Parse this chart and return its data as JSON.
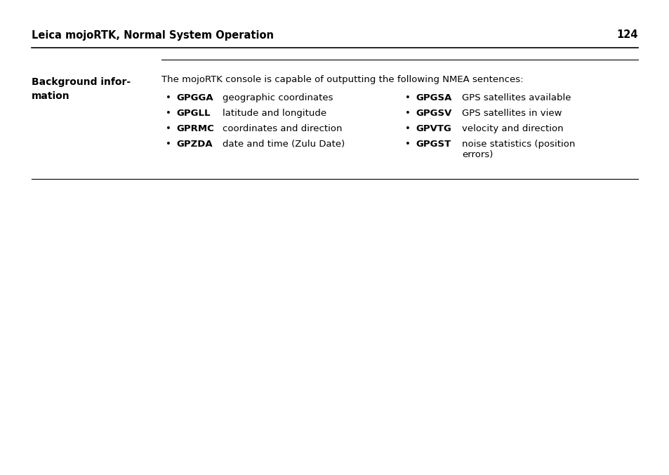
{
  "bg_color": "#ffffff",
  "header_title": "Leica mojoRTK, Normal System Operation",
  "header_page": "124",
  "section_label_line1": "Background infor-",
  "section_label_line2": "mation",
  "intro_text": "The mojoRTK console is capable of outputting the following NMEA sentences:",
  "left_bullets": [
    [
      "GPGGA",
      "geographic coordinates"
    ],
    [
      "GPGLL",
      "latitude and longitude"
    ],
    [
      "GPRMC",
      "coordinates and direction"
    ],
    [
      "GPZDA",
      "date and time (Zulu Date)"
    ]
  ],
  "right_bullets": [
    [
      "GPGSA",
      "GPS satellites available"
    ],
    [
      "GPGSV",
      "GPS satellites in view"
    ],
    [
      "GPVTG",
      "velocity and direction"
    ],
    [
      "GPGST",
      "noise statistics (position\nerrors)"
    ]
  ],
  "font_size_body": 9.5,
  "font_size_header": 10.5,
  "font_size_section": 10.0
}
